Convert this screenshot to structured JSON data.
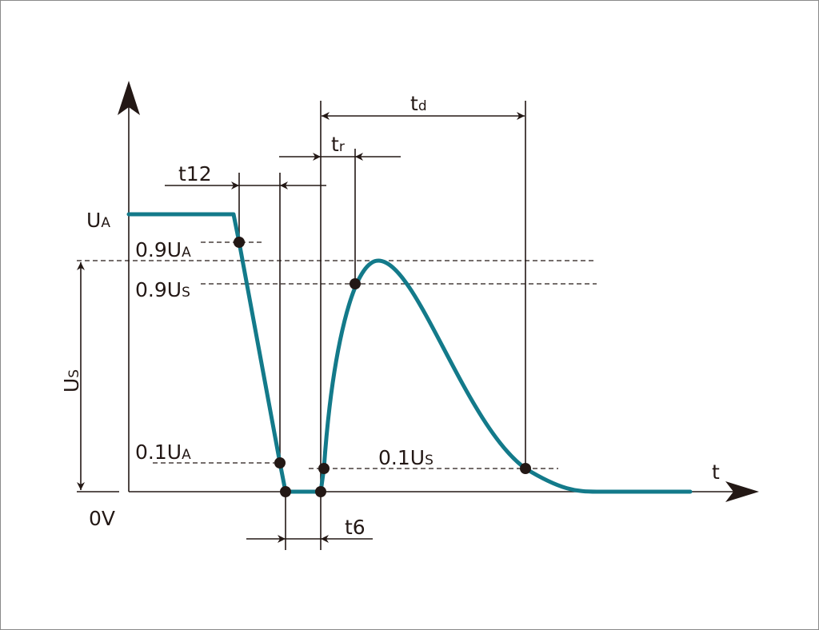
{
  "colors": {
    "waveform": "#137a8a",
    "lines": "#231815"
  },
  "labels": {
    "ua": {
      "main": "U",
      "sub": "A"
    },
    "ua09": {
      "main": "0.9U",
      "sub": "A"
    },
    "us09": {
      "main": "0.9U",
      "sub": "S"
    },
    "us": {
      "main": "U",
      "sub": "S"
    },
    "ua01": {
      "main": "0.1U",
      "sub": "A"
    },
    "us01": {
      "main": "0.1U",
      "sub": "S"
    },
    "zero": "0V",
    "t_axis": "t",
    "t12": "t12",
    "tr": {
      "main": "t",
      "sub": "r"
    },
    "td": {
      "main": "t",
      "sub": "d"
    },
    "t6": "t6"
  }
}
